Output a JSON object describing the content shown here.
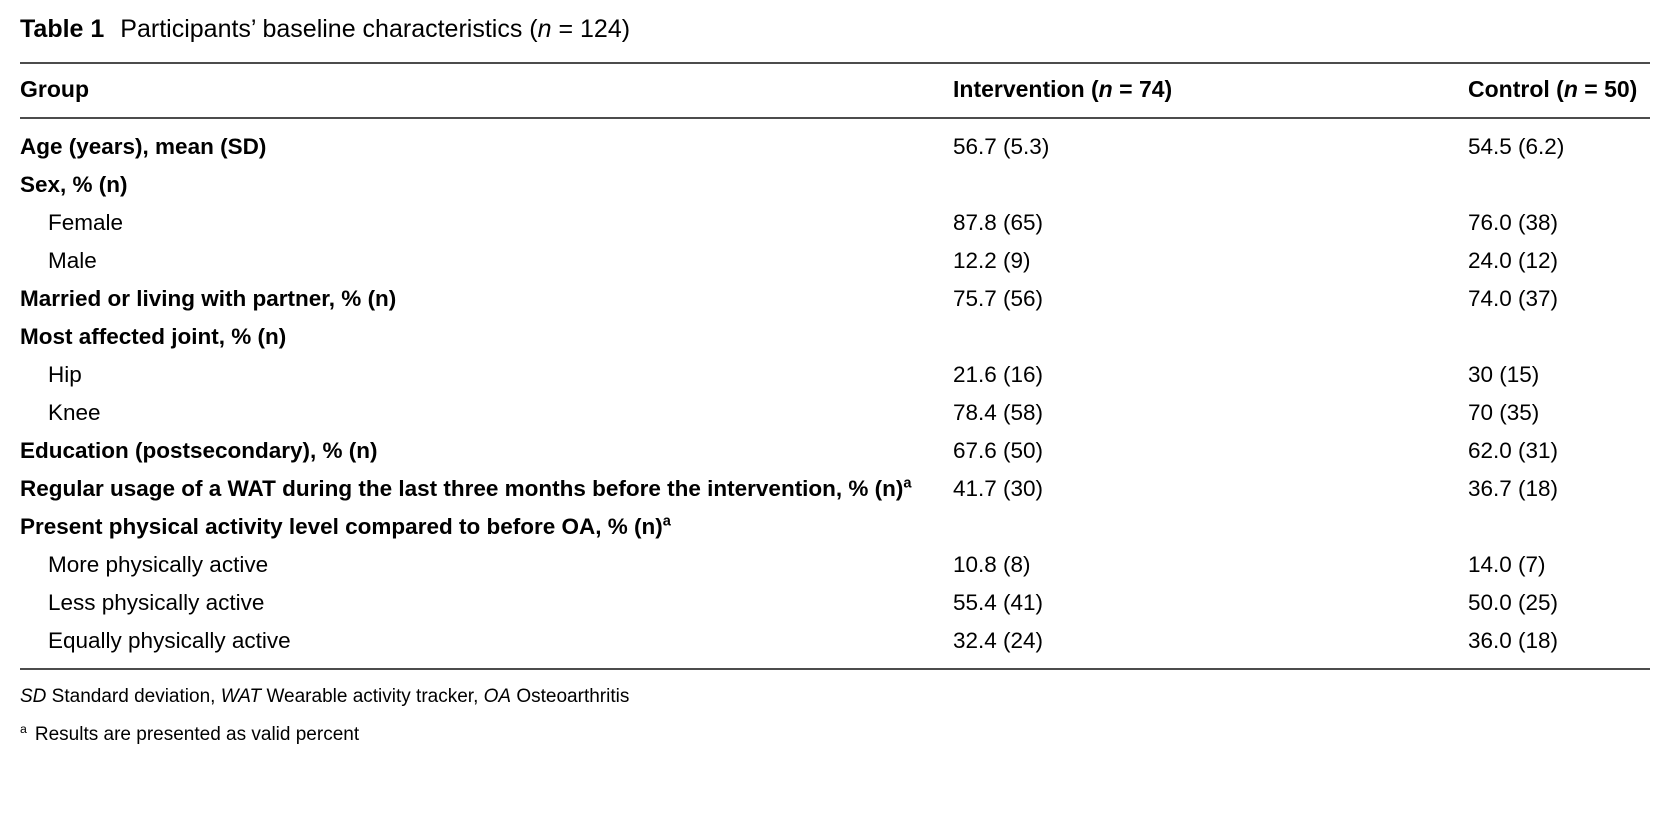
{
  "title": {
    "label": "Table 1",
    "caption_prefix": "Participants’ baseline characteristics (",
    "caption_n": "n",
    "caption_suffix": " = 124)"
  },
  "table": {
    "header": {
      "group": "Group",
      "intervention": {
        "prefix": "Intervention (",
        "n": "n",
        "suffix": " = 74)"
      },
      "control": {
        "prefix": "Control (",
        "n": "n",
        "suffix": " = 50)"
      }
    },
    "rows": [
      {
        "label": "Age (years), mean (SD)",
        "sup": "",
        "bold": true,
        "indent": false,
        "intervention": "56.7 (5.3)",
        "control": "54.5 (6.2)"
      },
      {
        "label": "Sex, % (n)",
        "sup": "",
        "bold": true,
        "indent": false,
        "intervention": "",
        "control": ""
      },
      {
        "label": "Female",
        "sup": "",
        "bold": false,
        "indent": true,
        "intervention": "87.8 (65)",
        "control": "76.0 (38)"
      },
      {
        "label": "Male",
        "sup": "",
        "bold": false,
        "indent": true,
        "intervention": "12.2 (9)",
        "control": "24.0 (12)"
      },
      {
        "label": "Married or living with partner, % (n)",
        "sup": "",
        "bold": true,
        "indent": false,
        "intervention": "75.7 (56)",
        "control": "74.0 (37)"
      },
      {
        "label": "Most affected joint, % (n)",
        "sup": "",
        "bold": true,
        "indent": false,
        "intervention": "",
        "control": ""
      },
      {
        "label": "Hip",
        "sup": "",
        "bold": false,
        "indent": true,
        "intervention": "21.6 (16)",
        "control": "30 (15)"
      },
      {
        "label": "Knee",
        "sup": "",
        "bold": false,
        "indent": true,
        "intervention": "78.4 (58)",
        "control": "70 (35)"
      },
      {
        "label": "Education (postsecondary), % (n)",
        "sup": "",
        "bold": true,
        "indent": false,
        "intervention": "67.6 (50)",
        "control": "62.0 (31)"
      },
      {
        "label": "Regular usage of a WAT during the last three months before the intervention, % (n)",
        "sup": "a",
        "bold": true,
        "indent": false,
        "intervention": "41.7 (30)",
        "control": "36.7 (18)"
      },
      {
        "label": "Present physical activity level compared to before OA, % (n)",
        "sup": "a",
        "bold": true,
        "indent": false,
        "intervention": "",
        "control": ""
      },
      {
        "label": "More physically active",
        "sup": "",
        "bold": false,
        "indent": true,
        "intervention": "10.8 (8)",
        "control": "14.0 (7)"
      },
      {
        "label": "Less physically active",
        "sup": "",
        "bold": false,
        "indent": true,
        "intervention": "55.4 (41)",
        "control": "50.0 (25)"
      },
      {
        "label": "Equally physically active",
        "sup": "",
        "bold": false,
        "indent": true,
        "intervention": "32.4 (24)",
        "control": "36.0 (18)"
      }
    ]
  },
  "footnotes": {
    "abbreviations": [
      {
        "abbr": "SD",
        "definition": " Standard deviation, "
      },
      {
        "abbr": "WAT",
        "definition": " Wearable activity tracker, "
      },
      {
        "abbr": "OA",
        "definition": " Osteoarthritis"
      }
    ],
    "note_a": {
      "marker": "a",
      "text": "Results are presented as valid percent"
    }
  }
}
